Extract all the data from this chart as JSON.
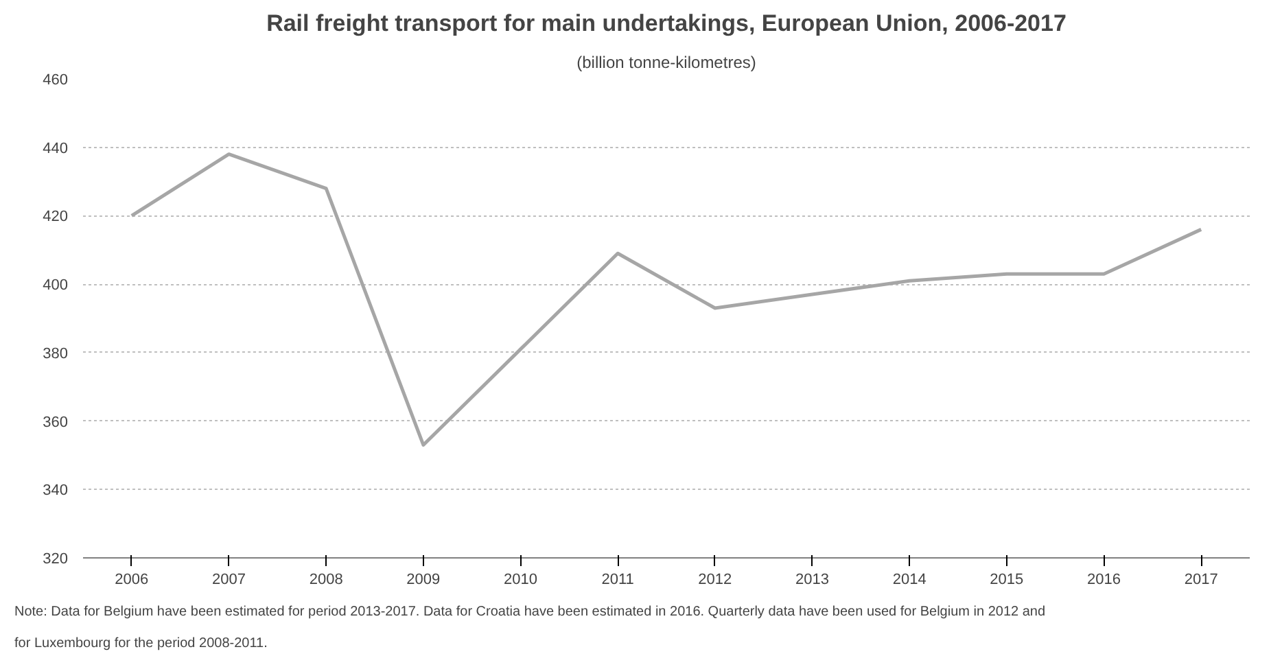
{
  "chart_data": {
    "type": "line",
    "title": "Rail freight transport for main undertakings, European Union, 2006-2017",
    "subtitle": "(billion tonne-kilometres)",
    "categories": [
      "2006",
      "2007",
      "2008",
      "2009",
      "2010",
      "2011",
      "2012",
      "2013",
      "2014",
      "2015",
      "2016",
      "2017"
    ],
    "series": [
      {
        "color": "#a6a6a6",
        "values": [
          420,
          438,
          428,
          353,
          381,
          409,
          393,
          397,
          401,
          403,
          403,
          416
        ]
      }
    ],
    "ylim": [
      320,
      460
    ],
    "yticks": [
      320,
      340,
      360,
      380,
      400,
      420,
      440,
      460
    ],
    "grid": "y",
    "annotations": [
      "Note: Data for Belgium have been estimated for period 2013-2017. Data for Croatia have been estimated in 2016. Quarterly data have been used for Belgium in 2012 and for Luxembourg for the period 2008-2011."
    ]
  }
}
